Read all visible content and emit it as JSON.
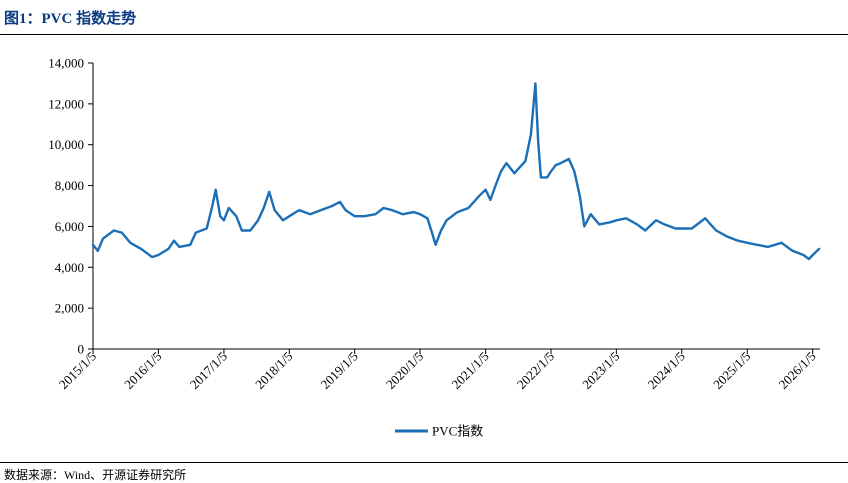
{
  "figure": {
    "title": "图1：PVC 指数走势",
    "source": "数据来源：Wind、开源证券研究所"
  },
  "colors": {
    "line": "#1b6fb6",
    "title": "#0b3a82",
    "axis": "#000000"
  },
  "chart_data": {
    "type": "line",
    "title": "",
    "xlabel": "",
    "ylabel": "",
    "ylim": [
      0,
      14000
    ],
    "y_ticks": [
      0,
      2000,
      4000,
      6000,
      8000,
      10000,
      12000,
      14000
    ],
    "y_tick_labels": [
      "0",
      "2,000",
      "4,000",
      "6,000",
      "8,000",
      "10,000",
      "12,000",
      "14,000"
    ],
    "x_tick_labels": [
      "2015/1/5",
      "2016/1/5",
      "2017/1/5",
      "2018/1/5",
      "2019/1/5",
      "2020/1/5",
      "2021/1/5",
      "2022/1/5",
      "2023/1/5",
      "2024/1/5",
      "2025/1/5",
      "2026/1/5"
    ],
    "xlim": [
      "2015/1/5",
      "2026/2/15"
    ],
    "grid": false,
    "legend_position": "bottom-center",
    "series": [
      {
        "name": "PVC指数",
        "points": [
          [
            "2015/1/5",
            5100
          ],
          [
            "2015/2/1",
            4800
          ],
          [
            "2015/3/1",
            5400
          ],
          [
            "2015/5/1",
            5800
          ],
          [
            "2015/6/15",
            5700
          ],
          [
            "2015/8/1",
            5200
          ],
          [
            "2015/10/1",
            4900
          ],
          [
            "2015/12/1",
            4500
          ],
          [
            "2016/1/5",
            4600
          ],
          [
            "2016/3/1",
            4900
          ],
          [
            "2016/4/1",
            5300
          ],
          [
            "2016/5/1",
            5000
          ],
          [
            "2016/7/1",
            5100
          ],
          [
            "2016/8/1",
            5700
          ],
          [
            "2016/10/1",
            5900
          ],
          [
            "2016/11/1",
            7000
          ],
          [
            "2016/11/20",
            7800
          ],
          [
            "2016/12/15",
            6500
          ],
          [
            "2017/1/5",
            6300
          ],
          [
            "2017/2/1",
            6900
          ],
          [
            "2017/3/15",
            6500
          ],
          [
            "2017/4/15",
            5800
          ],
          [
            "2017/6/1",
            5800
          ],
          [
            "2017/7/15",
            6300
          ],
          [
            "2017/8/15",
            6900
          ],
          [
            "2017/9/15",
            7700
          ],
          [
            "2017/10/15",
            6800
          ],
          [
            "2017/12/1",
            6300
          ],
          [
            "2018/1/5",
            6500
          ],
          [
            "2018/3/1",
            6800
          ],
          [
            "2018/5/1",
            6600
          ],
          [
            "2018/7/1",
            6800
          ],
          [
            "2018/9/1",
            7000
          ],
          [
            "2018/10/15",
            7200
          ],
          [
            "2018/11/15",
            6800
          ],
          [
            "2019/1/5",
            6500
          ],
          [
            "2019/3/1",
            6500
          ],
          [
            "2019/5/1",
            6600
          ],
          [
            "2019/6/15",
            6900
          ],
          [
            "2019/8/1",
            6800
          ],
          [
            "2019/10/1",
            6600
          ],
          [
            "2019/12/1",
            6700
          ],
          [
            "2020/1/5",
            6600
          ],
          [
            "2020/2/15",
            6400
          ],
          [
            "2020/3/15",
            5600
          ],
          [
            "2020/4/1",
            5100
          ],
          [
            "2020/5/1",
            5800
          ],
          [
            "2020/6/1",
            6300
          ],
          [
            "2020/8/1",
            6700
          ],
          [
            "2020/10/1",
            6900
          ],
          [
            "2020/12/1",
            7500
          ],
          [
            "2021/1/5",
            7800
          ],
          [
            "2021/2/1",
            7300
          ],
          [
            "2021/3/1",
            8000
          ],
          [
            "2021/4/1",
            8700
          ],
          [
            "2021/5/1",
            9100
          ],
          [
            "2021/6/15",
            8600
          ],
          [
            "2021/7/15",
            8900
          ],
          [
            "2021/8/15",
            9200
          ],
          [
            "2021/9/15",
            10500
          ],
          [
            "2021/10/10",
            13000
          ],
          [
            "2021/10/25",
            10200
          ],
          [
            "2021/11/10",
            8400
          ],
          [
            "2021/12/15",
            8400
          ],
          [
            "2022/1/5",
            8700
          ],
          [
            "2022/2/1",
            9000
          ],
          [
            "2022/3/1",
            9100
          ],
          [
            "2022/4/15",
            9300
          ],
          [
            "2022/5/15",
            8700
          ],
          [
            "2022/6/15",
            7500
          ],
          [
            "2022/7/10",
            6000
          ],
          [
            "2022/8/15",
            6600
          ],
          [
            "2022/10/1",
            6100
          ],
          [
            "2022/12/1",
            6200
          ],
          [
            "2023/1/5",
            6300
          ],
          [
            "2023/3/1",
            6400
          ],
          [
            "2023/5/1",
            6100
          ],
          [
            "2023/6/15",
            5800
          ],
          [
            "2023/8/15",
            6300
          ],
          [
            "2023/10/1",
            6100
          ],
          [
            "2023/12/1",
            5900
          ],
          [
            "2024/1/5",
            5900
          ],
          [
            "2024/3/1",
            5900
          ],
          [
            "2024/5/15",
            6400
          ],
          [
            "2024/7/15",
            5800
          ],
          [
            "2024/9/15",
            5500
          ],
          [
            "2024/11/15",
            5300
          ],
          [
            "2025/1/5",
            5200
          ],
          [
            "2025/3/1",
            5100
          ],
          [
            "2025/5/1",
            5000
          ],
          [
            "2025/7/15",
            5200
          ],
          [
            "2025/9/15",
            4800
          ],
          [
            "2025/11/15",
            4600
          ],
          [
            "2025/12/15",
            4400
          ],
          [
            "2026/1/5",
            4600
          ],
          [
            "2026/2/10",
            4900
          ]
        ]
      }
    ]
  }
}
